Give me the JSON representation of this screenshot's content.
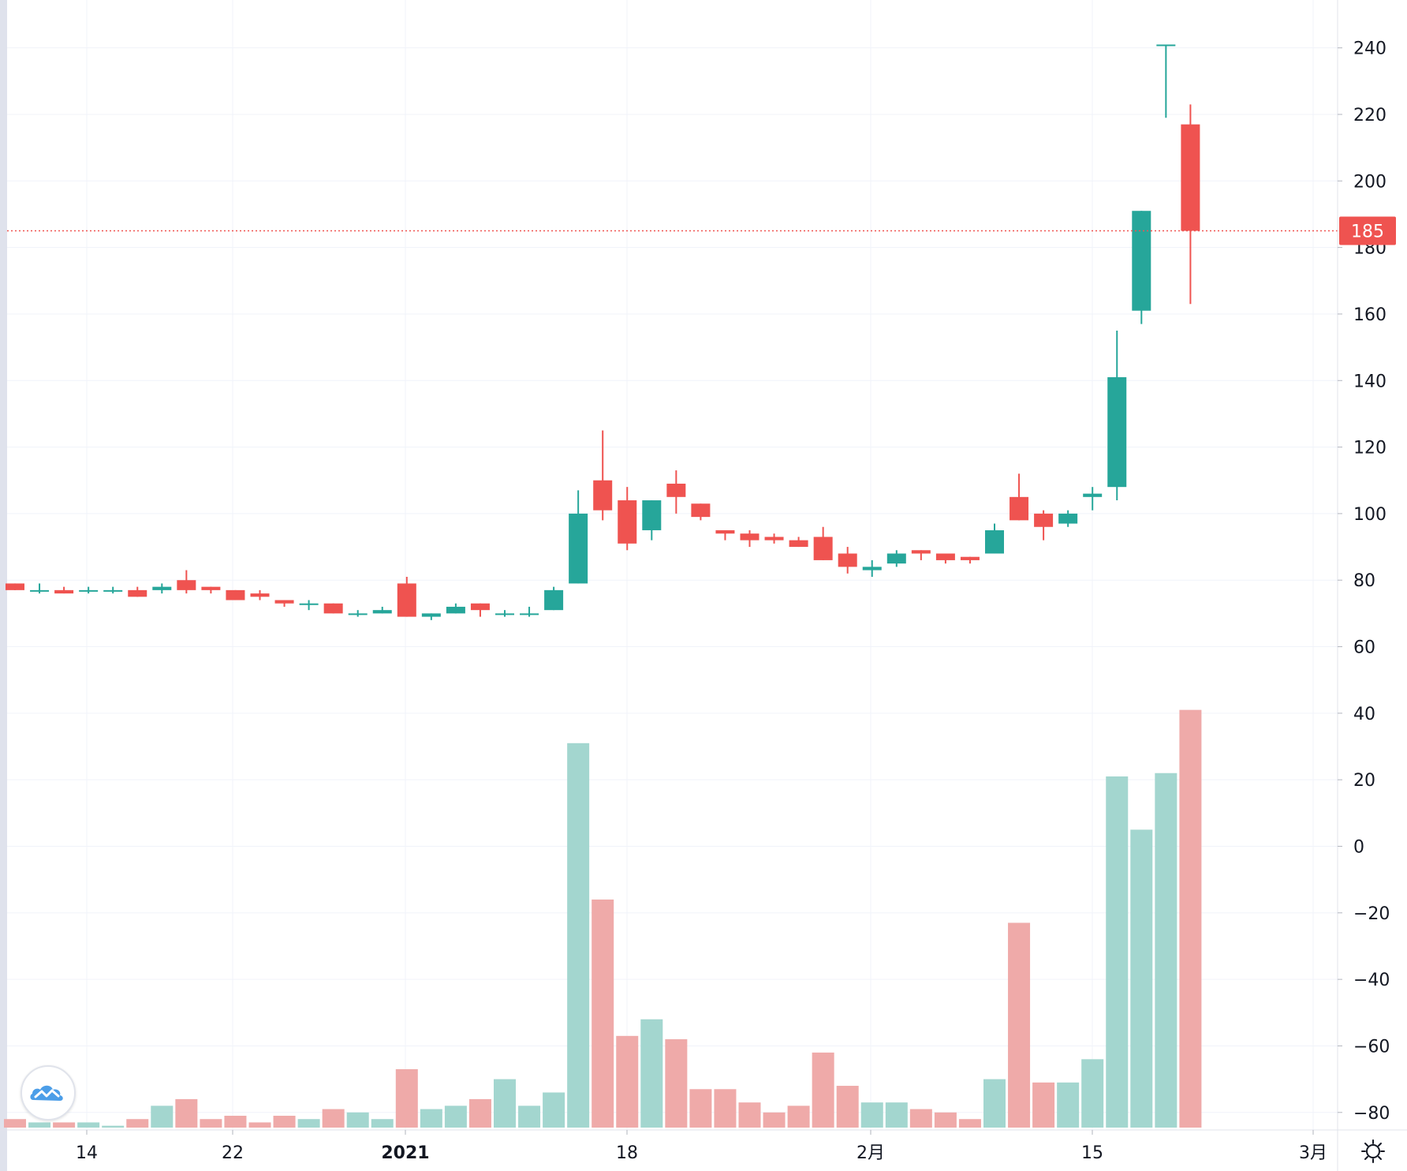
{
  "chart_data": {
    "type": "candlestick",
    "title": "",
    "x_axis": {
      "tick_labels": [
        {
          "text": "14",
          "bold": false
        },
        {
          "text": "22",
          "bold": false
        },
        {
          "text": "2021",
          "bold": true
        },
        {
          "text": "18",
          "bold": false
        },
        {
          "text": "2月",
          "bold": false
        },
        {
          "text": "15",
          "bold": false
        },
        {
          "text": "3月",
          "bold": false
        }
      ]
    },
    "y_axis": {
      "range": [
        -85,
        248
      ],
      "ticks": [
        240,
        220,
        200,
        180,
        160,
        140,
        120,
        100,
        80,
        60,
        40,
        20,
        0,
        -20,
        -40,
        -60,
        -80
      ],
      "side": "right"
    },
    "last_price": {
      "value": 185,
      "label": "185",
      "line_style": "dotted"
    },
    "grid": true,
    "up_color": "#26a69a",
    "down_color": "#ef5350",
    "volume_up_color": "#a3d6cf",
    "volume_down_color": "#efaaa9",
    "candles": [
      {
        "o": 79,
        "h": 79,
        "l": 77,
        "c": 77,
        "v": -82
      },
      {
        "o": 77,
        "h": 79,
        "l": 76,
        "c": 77,
        "v": -83
      },
      {
        "o": 77,
        "h": 78,
        "l": 76,
        "c": 76,
        "v": -83
      },
      {
        "o": 77,
        "h": 78,
        "l": 76,
        "c": 77,
        "v": -83
      },
      {
        "o": 77,
        "h": 78,
        "l": 76,
        "c": 77,
        "v": -84
      },
      {
        "o": 77,
        "h": 78,
        "l": 75,
        "c": 75,
        "v": -82
      },
      {
        "o": 77,
        "h": 79,
        "l": 76,
        "c": 78,
        "v": -78
      },
      {
        "o": 80,
        "h": 83,
        "l": 76,
        "c": 77,
        "v": -76
      },
      {
        "o": 78,
        "h": 78,
        "l": 76,
        "c": 77,
        "v": -82
      },
      {
        "o": 77,
        "h": 77,
        "l": 74,
        "c": 74,
        "v": -81
      },
      {
        "o": 76,
        "h": 77,
        "l": 74,
        "c": 75,
        "v": -83
      },
      {
        "o": 74,
        "h": 74,
        "l": 72,
        "c": 73,
        "v": -81
      },
      {
        "o": 73,
        "h": 74,
        "l": 71,
        "c": 73,
        "v": -82
      },
      {
        "o": 73,
        "h": 73,
        "l": 70,
        "c": 70,
        "v": -79
      },
      {
        "o": 70,
        "h": 71,
        "l": 69,
        "c": 70,
        "v": -80
      },
      {
        "o": 70,
        "h": 72,
        "l": 70,
        "c": 71,
        "v": -82
      },
      {
        "o": 79,
        "h": 81,
        "l": 69,
        "c": 69,
        "v": -67
      },
      {
        "o": 69,
        "h": 70,
        "l": 68,
        "c": 70,
        "v": -79
      },
      {
        "o": 70,
        "h": 73,
        "l": 70,
        "c": 72,
        "v": -78
      },
      {
        "o": 73,
        "h": 73,
        "l": 69,
        "c": 71,
        "v": -76
      },
      {
        "o": 70,
        "h": 71,
        "l": 69,
        "c": 70,
        "v": -70
      },
      {
        "o": 70,
        "h": 72,
        "l": 69,
        "c": 70,
        "v": -78
      },
      {
        "o": 71,
        "h": 78,
        "l": 71,
        "c": 77,
        "v": -74
      },
      {
        "o": 79,
        "h": 107,
        "l": 79,
        "c": 100,
        "v": 31
      },
      {
        "o": 110,
        "h": 125,
        "l": 98,
        "c": 101,
        "v": -16
      },
      {
        "o": 104,
        "h": 108,
        "l": 89,
        "c": 91,
        "v": -57
      },
      {
        "o": 95,
        "h": 104,
        "l": 92,
        "c": 104,
        "v": -52
      },
      {
        "o": 109,
        "h": 113,
        "l": 100,
        "c": 105,
        "v": -58
      },
      {
        "o": 103,
        "h": 103,
        "l": 98,
        "c": 99,
        "v": -73
      },
      {
        "o": 95,
        "h": 95,
        "l": 92,
        "c": 94,
        "v": -73
      },
      {
        "o": 94,
        "h": 95,
        "l": 90,
        "c": 92,
        "v": -77
      },
      {
        "o": 93,
        "h": 94,
        "l": 91,
        "c": 92,
        "v": -80
      },
      {
        "o": 92,
        "h": 93,
        "l": 90,
        "c": 90,
        "v": -78
      },
      {
        "o": 93,
        "h": 96,
        "l": 86,
        "c": 86,
        "v": -62
      },
      {
        "o": 88,
        "h": 90,
        "l": 82,
        "c": 84,
        "v": -72
      },
      {
        "o": 83,
        "h": 86,
        "l": 81,
        "c": 84,
        "v": -77
      },
      {
        "o": 85,
        "h": 89,
        "l": 84,
        "c": 88,
        "v": -77
      },
      {
        "o": 89,
        "h": 89,
        "l": 86,
        "c": 88,
        "v": -79
      },
      {
        "o": 88,
        "h": 88,
        "l": 85,
        "c": 86,
        "v": -80
      },
      {
        "o": 87,
        "h": 87,
        "l": 85,
        "c": 86,
        "v": -82
      },
      {
        "o": 88,
        "h": 97,
        "l": 88,
        "c": 95,
        "v": -70
      },
      {
        "o": 105,
        "h": 112,
        "l": 98,
        "c": 98,
        "v": -23
      },
      {
        "o": 100,
        "h": 101,
        "l": 92,
        "c": 96,
        "v": -71
      },
      {
        "o": 97,
        "h": 101,
        "l": 96,
        "c": 100,
        "v": -71
      },
      {
        "o": 105,
        "h": 108,
        "l": 101,
        "c": 106,
        "v": -64
      },
      {
        "o": 108,
        "h": 155,
        "l": 104,
        "c": 141,
        "v": 21
      },
      {
        "o": 161,
        "h": 191,
        "l": 157,
        "c": 191,
        "v": 5
      },
      {
        "o": 241,
        "h": 241,
        "l": 219,
        "c": 241,
        "v": 22
      },
      {
        "o": 217,
        "h": 223,
        "l": 163,
        "c": 185,
        "v": 41
      }
    ]
  },
  "icons": {
    "logo": "tradingview-cloud-logo-icon",
    "settings": "gear-icon"
  }
}
